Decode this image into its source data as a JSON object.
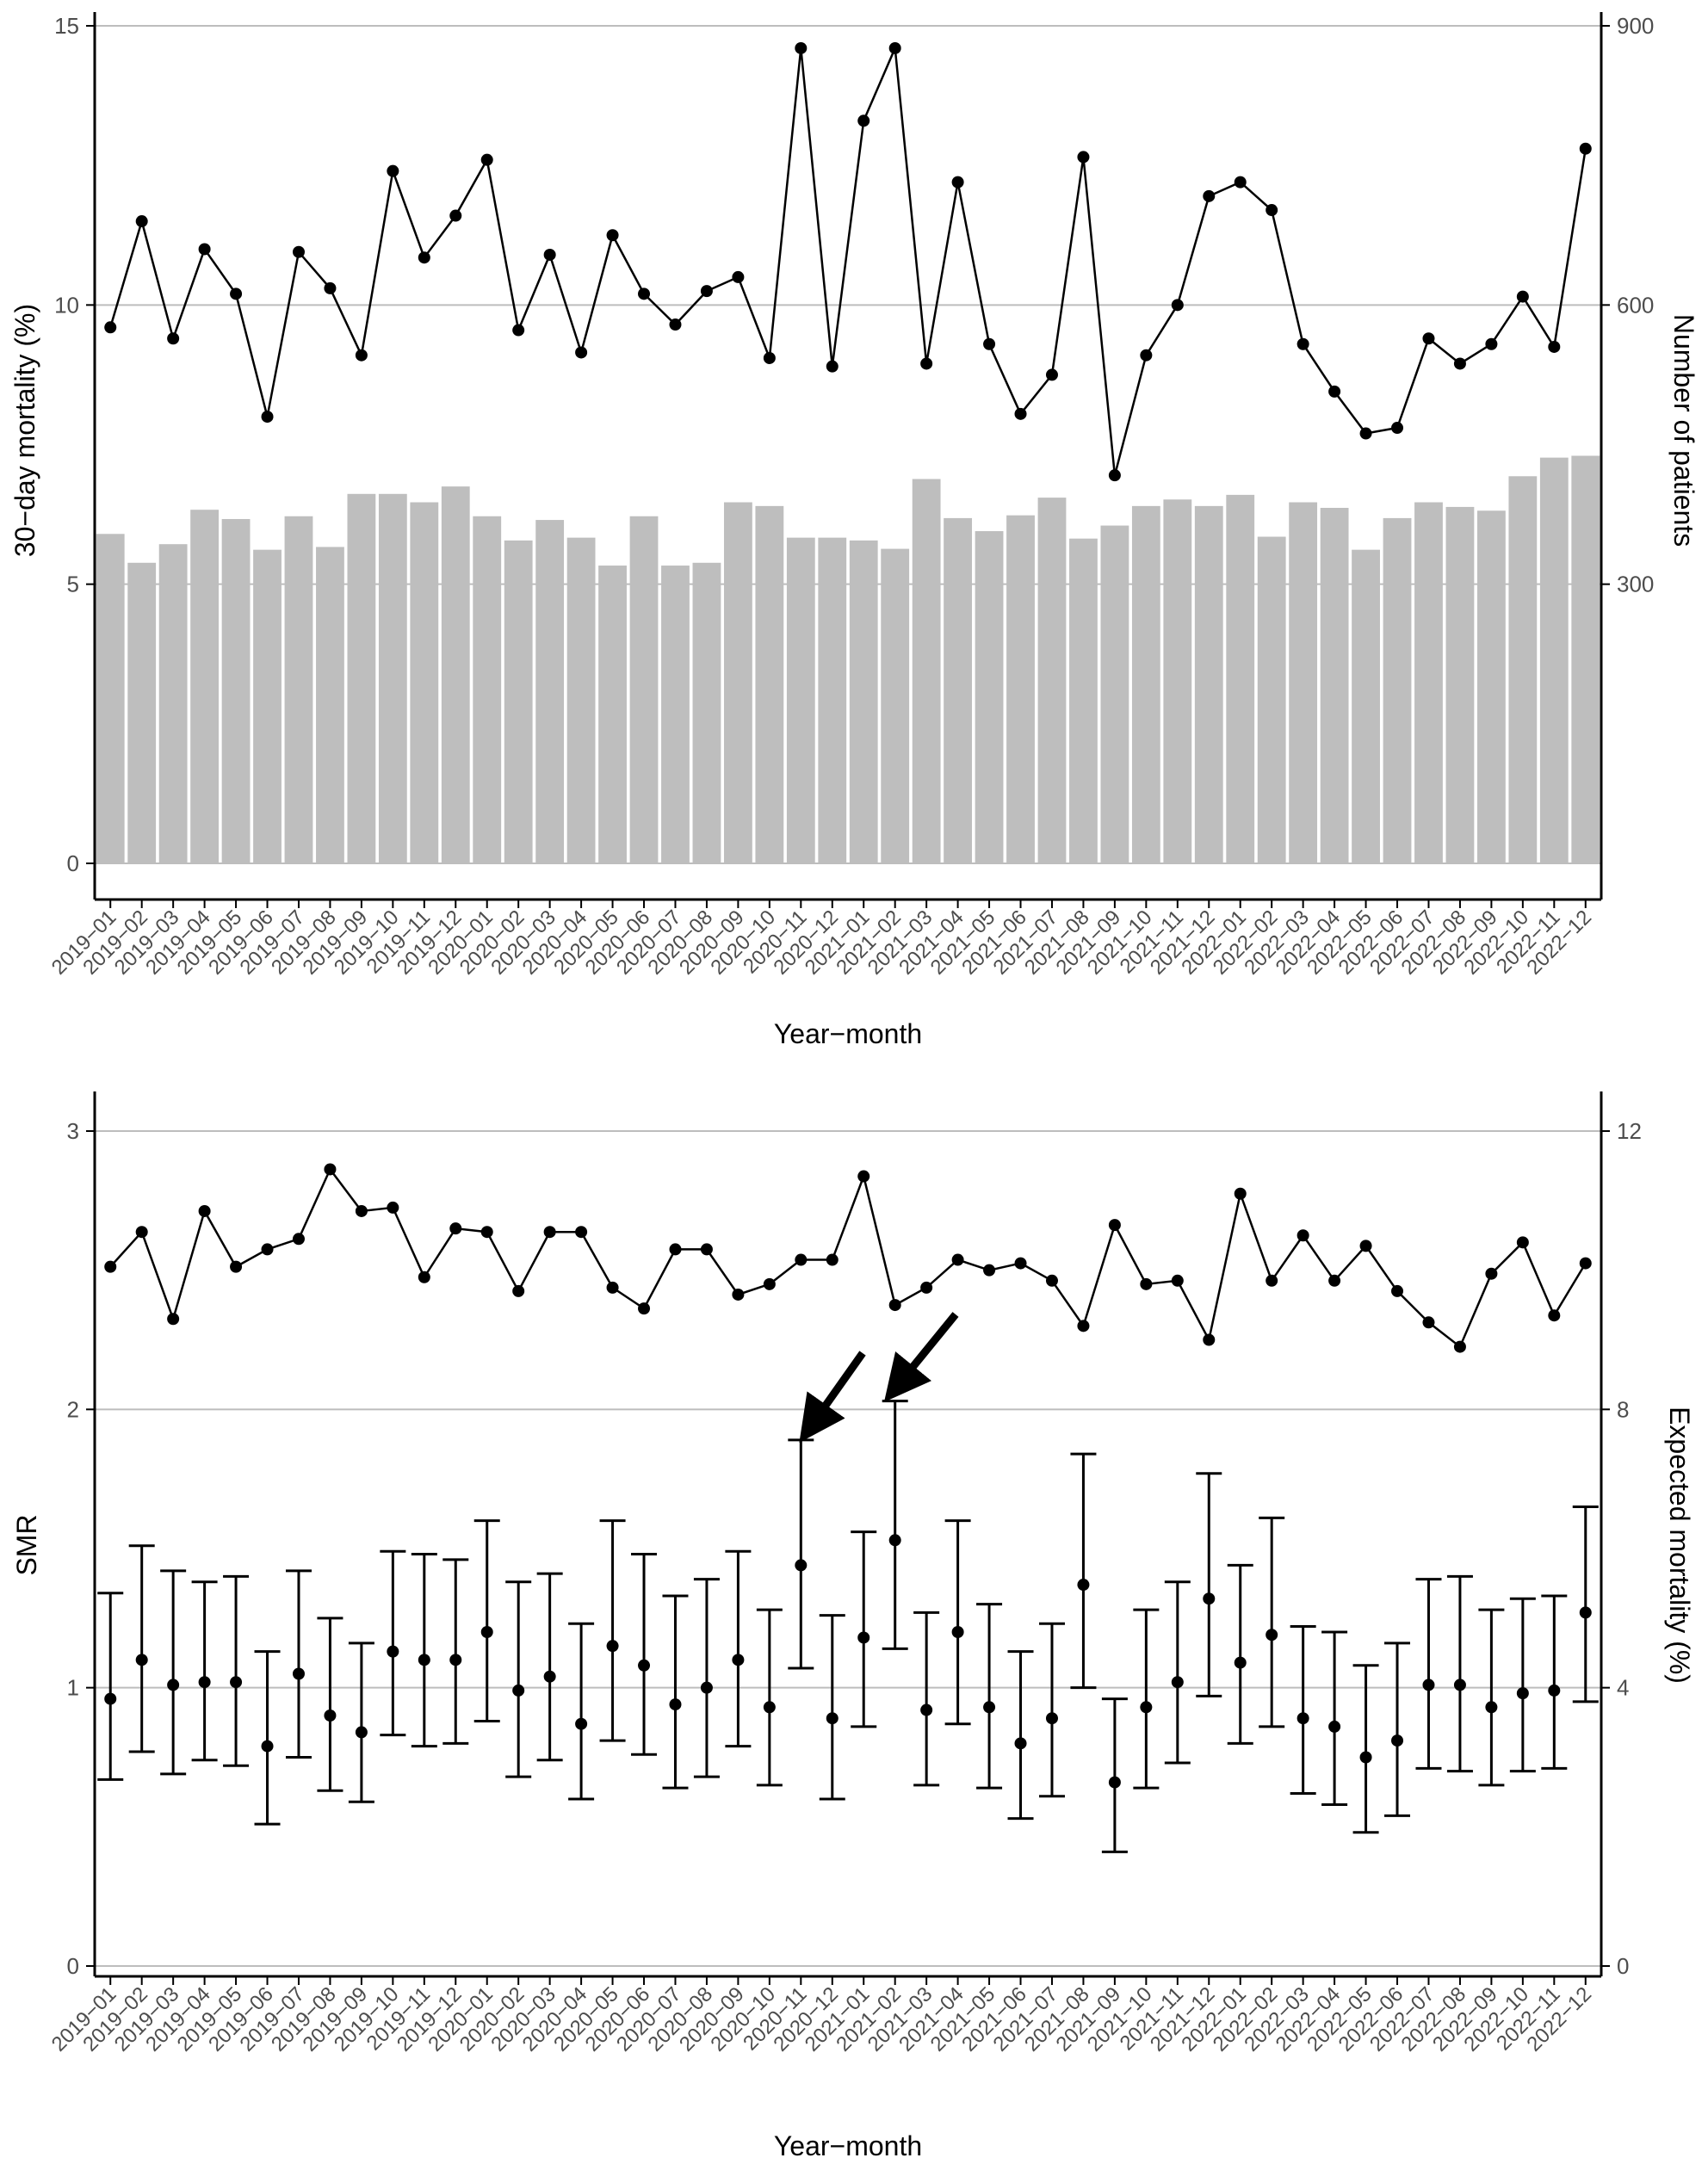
{
  "chart_data": [
    {
      "type": "bar+line",
      "title": "",
      "xlabel": "Year−month",
      "ylabel_left": "30−day mortality (%)",
      "ylabel_right": "Number of patients",
      "ylim_left": [
        0,
        15
      ],
      "ylim_right": [
        0,
        900
      ],
      "yticks_left": [
        "0",
        "5",
        "10",
        "15"
      ],
      "yticks_right": [
        "300",
        "600",
        "900"
      ],
      "grid": "horizontal",
      "categories": [
        "2019−01",
        "2019−02",
        "2019−03",
        "2019−04",
        "2019−05",
        "2019−06",
        "2019−07",
        "2019−08",
        "2019−09",
        "2019−10",
        "2019−11",
        "2019−12",
        "2020−01",
        "2020−02",
        "2020−03",
        "2020−04",
        "2020−05",
        "2020−06",
        "2020−07",
        "2020−08",
        "2020−09",
        "2020−10",
        "2020−11",
        "2020−12",
        "2021−01",
        "2021−02",
        "2021−03",
        "2021−04",
        "2021−05",
        "2021−06",
        "2021−07",
        "2021−08",
        "2021−09",
        "2021−10",
        "2021−11",
        "2021−12",
        "2022−01",
        "2022−02",
        "2022−03",
        "2022−04",
        "2022−05",
        "2022−06",
        "2022−07",
        "2022−08",
        "2022−09",
        "2022−10",
        "2022−11",
        "2022−12"
      ],
      "series": [
        {
          "name": "Number of patients",
          "kind": "bar",
          "axis": "right",
          "color": "#bebebe",
          "values": [
            354,
            323,
            343,
            380,
            370,
            337,
            373,
            340,
            397,
            397,
            388,
            405,
            373,
            347,
            369,
            350,
            320,
            373,
            320,
            323,
            388,
            384,
            350,
            350,
            347,
            338,
            413,
            371,
            357,
            374,
            393,
            349,
            363,
            384,
            391,
            384,
            396,
            351,
            388,
            382,
            337,
            371,
            388,
            383,
            379,
            416,
            436,
            438
          ]
        },
        {
          "name": "30-day mortality (%)",
          "kind": "line",
          "axis": "left",
          "color": "#000000",
          "values": [
            9.6,
            11.5,
            9.4,
            11.0,
            10.2,
            8.0,
            10.95,
            10.3,
            9.1,
            12.4,
            10.85,
            11.6,
            12.6,
            9.55,
            10.9,
            9.15,
            11.25,
            10.2,
            9.65,
            10.25,
            10.5,
            9.05,
            14.6,
            8.9,
            13.3,
            14.6,
            8.95,
            12.2,
            9.3,
            8.05,
            8.75,
            12.65,
            6.95,
            9.1,
            10.0,
            11.95,
            12.2,
            11.7,
            9.3,
            8.45,
            7.7,
            7.8,
            9.4,
            8.95,
            9.3,
            10.15,
            9.25,
            12.8
          ]
        }
      ]
    },
    {
      "type": "errorbar+line",
      "title": "",
      "xlabel": "Year−month",
      "ylabel_left": "SMR",
      "ylabel_right": "Expected mortality (%)",
      "ylim_left": [
        0,
        3
      ],
      "ylim_right": [
        0,
        12
      ],
      "yticks_left": [
        "0",
        "1",
        "2",
        "3"
      ],
      "yticks_right": [
        "0",
        "4",
        "8",
        "12"
      ],
      "grid": "horizontal",
      "categories": [
        "2019−01",
        "2019−02",
        "2019−03",
        "2019−04",
        "2019−05",
        "2019−06",
        "2019−07",
        "2019−08",
        "2019−09",
        "2019−10",
        "2019−11",
        "2019−12",
        "2020−01",
        "2020−02",
        "2020−03",
        "2020−04",
        "2020−05",
        "2020−06",
        "2020−07",
        "2020−08",
        "2020−09",
        "2020−10",
        "2020−11",
        "2020−12",
        "2021−01",
        "2021−02",
        "2021−03",
        "2021−04",
        "2021−05",
        "2021−06",
        "2021−07",
        "2021−08",
        "2021−09",
        "2021−10",
        "2021−11",
        "2021−12",
        "2022−01",
        "2022−02",
        "2022−03",
        "2022−04",
        "2022−05",
        "2022−06",
        "2022−07",
        "2022−08",
        "2022−09",
        "2022−10",
        "2022−11",
        "2022−12"
      ],
      "series": [
        {
          "name": "SMR",
          "kind": "point+errorbar",
          "axis": "left",
          "color": "#000000",
          "values": [
            0.96,
            1.1,
            1.01,
            1.02,
            1.02,
            0.79,
            1.05,
            0.9,
            0.84,
            1.13,
            1.1,
            1.1,
            1.2,
            0.99,
            1.04,
            0.87,
            1.15,
            1.08,
            0.94,
            1.0,
            1.1,
            0.93,
            1.44,
            0.89,
            1.18,
            1.53,
            0.92,
            1.2,
            0.93,
            0.8,
            0.89,
            1.37,
            0.66,
            0.93,
            1.02,
            1.32,
            1.09,
            1.19,
            0.89,
            0.86,
            0.75,
            0.81,
            1.01,
            1.01,
            0.93,
            0.98,
            0.99,
            1.27
          ],
          "lower": [
            0.67,
            0.77,
            0.69,
            0.74,
            0.72,
            0.51,
            0.75,
            0.63,
            0.59,
            0.83,
            0.79,
            0.8,
            0.88,
            0.68,
            0.74,
            0.6,
            0.81,
            0.76,
            0.64,
            0.68,
            0.79,
            0.65,
            1.07,
            0.6,
            0.86,
            1.14,
            0.65,
            0.87,
            0.64,
            0.53,
            0.61,
            1.0,
            0.41,
            0.64,
            0.73,
            0.97,
            0.8,
            0.86,
            0.62,
            0.58,
            0.48,
            0.54,
            0.71,
            0.7,
            0.65,
            0.7,
            0.71,
            0.95
          ],
          "upper": [
            1.34,
            1.51,
            1.42,
            1.38,
            1.4,
            1.13,
            1.42,
            1.25,
            1.16,
            1.49,
            1.48,
            1.46,
            1.6,
            1.38,
            1.41,
            1.23,
            1.6,
            1.48,
            1.33,
            1.39,
            1.49,
            1.28,
            1.89,
            1.26,
            1.56,
            2.03,
            1.27,
            1.6,
            1.3,
            1.13,
            1.23,
            1.84,
            0.96,
            1.28,
            1.38,
            1.77,
            1.44,
            1.61,
            1.22,
            1.2,
            1.08,
            1.16,
            1.39,
            1.4,
            1.28,
            1.32,
            1.33,
            1.65
          ]
        },
        {
          "name": "Expected mortality (%)",
          "kind": "line",
          "axis": "right",
          "color": "#000000",
          "values": [
            10.05,
            10.55,
            9.3,
            10.85,
            10.05,
            10.3,
            10.45,
            11.45,
            10.85,
            10.9,
            9.9,
            10.6,
            10.55,
            9.7,
            10.55,
            10.55,
            9.75,
            9.45,
            10.3,
            10.3,
            9.65,
            9.8,
            10.15,
            10.15,
            11.35,
            9.5,
            9.75,
            10.15,
            10.0,
            10.1,
            9.85,
            9.2,
            10.65,
            9.8,
            9.85,
            9.0,
            11.1,
            9.85,
            10.5,
            9.85,
            10.35,
            9.7,
            9.25,
            8.9,
            9.95,
            10.4,
            9.35,
            10.1
          ]
        }
      ],
      "annotations": [
        {
          "type": "arrow",
          "points_to": "2020−11"
        },
        {
          "type": "arrow",
          "points_to": "2021−02"
        }
      ]
    }
  ]
}
